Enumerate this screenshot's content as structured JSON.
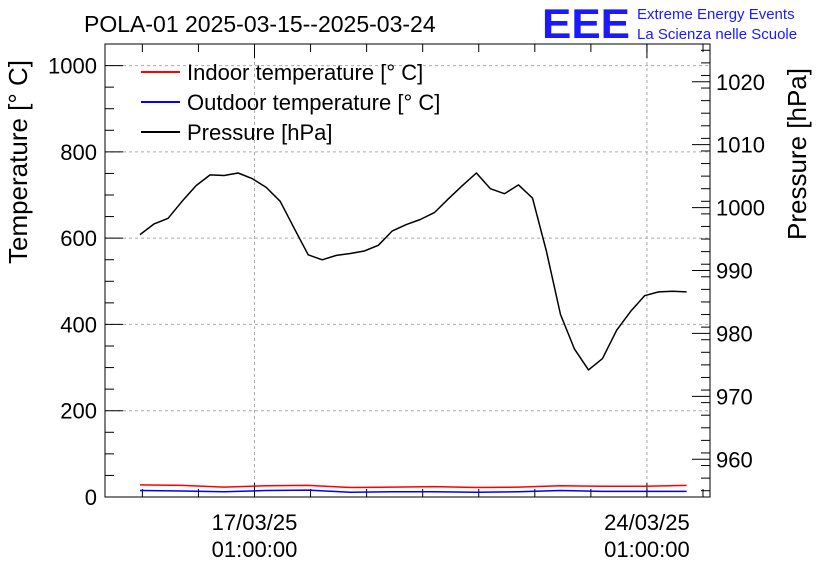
{
  "logo": {
    "mark": "EEE",
    "line1": "Extreme Energy Events",
    "line2": "La Scienza nelle Scuole"
  },
  "chart_data": {
    "type": "line",
    "title": "POLA-01 2025-03-15--2025-03-24",
    "ylabel": "Temperature [° C]",
    "y2label": "Pressure [hPa]",
    "ylim": [
      0,
      1050
    ],
    "y2lim": [
      954,
      1026
    ],
    "yticks": [
      "0",
      "200",
      "400",
      "600",
      "800",
      "1000"
    ],
    "y2ticks": [
      "960",
      "970",
      "980",
      "990",
      "1000",
      "1010",
      "1020"
    ],
    "xlim": [
      "2025-03-14T09:00",
      "2025-03-25T04:00"
    ],
    "xticks": [
      {
        "date": "17/03/25",
        "time": "01:00:00",
        "x": "2025-03-17T01:00"
      },
      {
        "date": "24/03/25",
        "time": "01:00:00",
        "x": "2025-03-24T01:00"
      }
    ],
    "grid": true,
    "legend_position": "top-left",
    "series": [
      {
        "name": "Indoor temperature [° C]",
        "axis": "left",
        "color": "#ff0000",
        "x": [
          "2025-03-15T00:00",
          "2025-03-15T18:00",
          "2025-03-16T12:00",
          "2025-03-17T06:00",
          "2025-03-18T00:00",
          "2025-03-18T18:00",
          "2025-03-19T12:00",
          "2025-03-20T06:00",
          "2025-03-21T00:00",
          "2025-03-21T18:00",
          "2025-03-22T12:00",
          "2025-03-23T06:00",
          "2025-03-24T00:00",
          "2025-03-24T18:00"
        ],
        "values": [
          28,
          27,
          23,
          26,
          27,
          22,
          23,
          24,
          22,
          23,
          26,
          25,
          25,
          27
        ]
      },
      {
        "name": "Outdoor temperature [° C]",
        "axis": "left",
        "color": "#0000ff",
        "x": [
          "2025-03-15T00:00",
          "2025-03-15T18:00",
          "2025-03-16T12:00",
          "2025-03-17T06:00",
          "2025-03-18T00:00",
          "2025-03-18T18:00",
          "2025-03-19T12:00",
          "2025-03-20T06:00",
          "2025-03-21T00:00",
          "2025-03-21T18:00",
          "2025-03-22T12:00",
          "2025-03-23T06:00",
          "2025-03-24T00:00",
          "2025-03-24T18:00"
        ],
        "values": [
          15,
          14,
          12,
          15,
          16,
          11,
          12,
          12,
          11,
          12,
          15,
          13,
          13,
          13
        ]
      },
      {
        "name": "Pressure [hPa]",
        "axis": "right",
        "color": "#000000",
        "x": [
          "2025-03-15T00:00",
          "2025-03-15T06:00",
          "2025-03-15T12:00",
          "2025-03-15T18:00",
          "2025-03-16T00:00",
          "2025-03-16T06:00",
          "2025-03-16T12:00",
          "2025-03-16T18:00",
          "2025-03-17T00:00",
          "2025-03-17T06:00",
          "2025-03-17T12:00",
          "2025-03-17T18:00",
          "2025-03-18T00:00",
          "2025-03-18T06:00",
          "2025-03-18T12:00",
          "2025-03-18T18:00",
          "2025-03-19T00:00",
          "2025-03-19T06:00",
          "2025-03-19T12:00",
          "2025-03-19T18:00",
          "2025-03-20T00:00",
          "2025-03-20T06:00",
          "2025-03-20T12:00",
          "2025-03-20T18:00",
          "2025-03-21T00:00",
          "2025-03-21T06:00",
          "2025-03-21T12:00",
          "2025-03-21T18:00",
          "2025-03-22T00:00",
          "2025-03-22T06:00",
          "2025-03-22T12:00",
          "2025-03-22T18:00",
          "2025-03-23T00:00",
          "2025-03-23T06:00",
          "2025-03-23T12:00",
          "2025-03-23T18:00",
          "2025-03-24T00:00",
          "2025-03-24T06:00",
          "2025-03-24T12:00",
          "2025-03-24T18:00"
        ],
        "values": [
          995.7,
          997.4,
          998.3,
          1001.0,
          1003.5,
          1005.2,
          1005.1,
          1005.5,
          1004.6,
          1003.2,
          1001.0,
          996.7,
          992.5,
          991.7,
          992.4,
          992.7,
          993.1,
          994.0,
          996.3,
          997.3,
          998.1,
          999.2,
          1001.4,
          1003.5,
          1005.5,
          1003.0,
          1002.2,
          1003.6,
          1001.5,
          993.0,
          983.0,
          977.5,
          974.2,
          976.0,
          980.5,
          983.5,
          986.0,
          986.6,
          986.7,
          986.6
        ]
      }
    ]
  }
}
